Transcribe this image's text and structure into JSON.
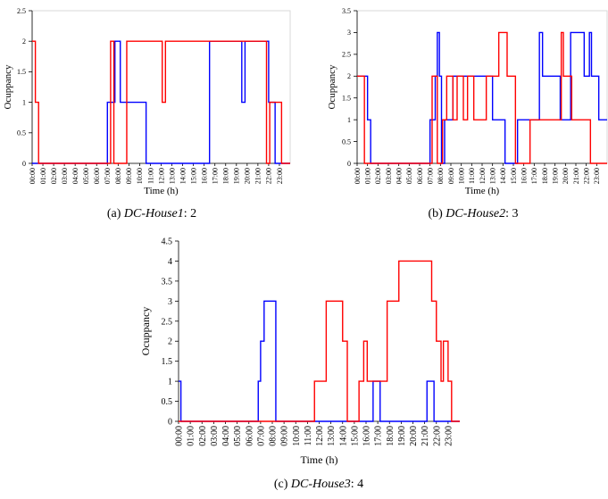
{
  "chart_data": [
    {
      "type": "line",
      "caption_label": "(a)",
      "caption_name": "DC-House1",
      "caption_value": ": 2",
      "xlabel": "Time (h)",
      "ylabel": "Ocuppancy",
      "xlim": [
        0,
        24
      ],
      "ylim": [
        0,
        2.5
      ],
      "yticks": [
        0,
        0.5,
        1,
        1.5,
        2,
        2.5
      ],
      "xticks": [
        {
          "value": 0,
          "label": "00:00"
        },
        {
          "value": 1,
          "label": "01:00"
        },
        {
          "value": 2,
          "label": "02:00"
        },
        {
          "value": 3,
          "label": "03:00"
        },
        {
          "value": 4,
          "label": "04:00"
        },
        {
          "value": 5,
          "label": "05:00"
        },
        {
          "value": 6,
          "label": "06:00"
        },
        {
          "value": 7,
          "label": "07:00"
        },
        {
          "value": 8,
          "label": "08:00"
        },
        {
          "value": 9,
          "label": "09:00"
        },
        {
          "value": 10,
          "label": "10:00"
        },
        {
          "value": 11,
          "label": "11:00"
        },
        {
          "value": 12,
          "label": "12:00"
        },
        {
          "value": 13,
          "label": "13:00"
        },
        {
          "value": 14,
          "label": "14:00"
        },
        {
          "value": 15,
          "label": "15:00"
        },
        {
          "value": 16,
          "label": "16:00"
        },
        {
          "value": 17,
          "label": "17:00"
        },
        {
          "value": 18,
          "label": "18:00"
        },
        {
          "value": 19,
          "label": "19:00"
        },
        {
          "value": 20,
          "label": "20:00"
        },
        {
          "value": 21,
          "label": "21:00"
        },
        {
          "value": 22,
          "label": "22:00"
        },
        {
          "value": 23,
          "label": "23:00"
        }
      ],
      "series": [
        {
          "color": "#0000ff",
          "x": [
            0,
            7,
            7,
            7.7,
            7.7,
            8.2,
            8.2,
            10.6,
            10.6,
            16.5,
            16.5,
            19.5,
            19.5,
            19.8,
            19.8,
            22,
            22,
            22.6,
            22.6,
            24
          ],
          "values": [
            0,
            0,
            1,
            1,
            2,
            2,
            1,
            1,
            0,
            0,
            2,
            2,
            1,
            1,
            2,
            2,
            1,
            1,
            0,
            0
          ]
        },
        {
          "color": "#ff0000",
          "x": [
            0,
            0.3,
            0.3,
            0.6,
            0.6,
            7.3,
            7.3,
            7.6,
            7.6,
            8.8,
            8.8,
            12.1,
            12.1,
            12.4,
            12.4,
            21.8,
            21.8,
            22.1,
            22.1,
            23.2,
            23.2,
            24
          ],
          "values": [
            2,
            2,
            1,
            1,
            0,
            0,
            2,
            2,
            0,
            0,
            2,
            2,
            1,
            1,
            2,
            2,
            0,
            0,
            1,
            1,
            0,
            0
          ]
        }
      ]
    },
    {
      "type": "line",
      "caption_label": "(b)",
      "caption_name": "DC-House2",
      "caption_value": ": 3",
      "xlabel": "Time (h)",
      "ylabel": "Ocuppancy",
      "xlim": [
        0,
        24
      ],
      "ylim": [
        0,
        3.5
      ],
      "yticks": [
        0,
        0.5,
        1,
        1.5,
        2,
        2.5,
        3,
        3.5
      ],
      "xticks": [
        {
          "value": 0,
          "label": "00:00"
        },
        {
          "value": 1,
          "label": "01:00"
        },
        {
          "value": 2,
          "label": "02:00"
        },
        {
          "value": 3,
          "label": "03:00"
        },
        {
          "value": 4,
          "label": "04:00"
        },
        {
          "value": 5,
          "label": "05:00"
        },
        {
          "value": 6,
          "label": "06:00"
        },
        {
          "value": 7,
          "label": "07:00"
        },
        {
          "value": 8,
          "label": "08:00"
        },
        {
          "value": 9,
          "label": "09:00"
        },
        {
          "value": 10,
          "label": "10:00"
        },
        {
          "value": 11,
          "label": "11:00"
        },
        {
          "value": 12,
          "label": "12:00"
        },
        {
          "value": 13,
          "label": "13:00"
        },
        {
          "value": 14,
          "label": "14:00"
        },
        {
          "value": 15,
          "label": "15:00"
        },
        {
          "value": 16,
          "label": "16:00"
        },
        {
          "value": 17,
          "label": "17:00"
        },
        {
          "value": 18,
          "label": "18:00"
        },
        {
          "value": 19,
          "label": "19:00"
        },
        {
          "value": 20,
          "label": "20:00"
        },
        {
          "value": 21,
          "label": "21:00"
        },
        {
          "value": 22,
          "label": "22:00"
        },
        {
          "value": 23,
          "label": "23:00"
        }
      ],
      "series": [
        {
          "color": "#0000ff",
          "x": [
            0,
            1,
            1,
            1.3,
            1.3,
            7,
            7,
            7.5,
            7.5,
            7.7,
            7.7,
            7.9,
            7.9,
            8.1,
            8.1,
            8.4,
            8.4,
            9.2,
            9.2,
            13,
            13,
            14.2,
            14.2,
            15.4,
            15.4,
            17.5,
            17.5,
            17.8,
            17.8,
            19.5,
            19.5,
            20.5,
            20.5,
            21.8,
            21.8,
            22.3,
            22.3,
            22.5,
            22.5,
            23.2,
            23.2,
            24
          ],
          "values": [
            2,
            2,
            1,
            1,
            0,
            0,
            1,
            1,
            2,
            2,
            3,
            3,
            2,
            2,
            0,
            0,
            1,
            1,
            2,
            2,
            1,
            1,
            0,
            0,
            1,
            1,
            3,
            3,
            2,
            2,
            1,
            1,
            3,
            3,
            2,
            2,
            3,
            3,
            2,
            2,
            1,
            1
          ]
        },
        {
          "color": "#ff0000",
          "x": [
            0,
            0.7,
            0.7,
            7.2,
            7.2,
            7.7,
            7.7,
            8.2,
            8.2,
            8.6,
            8.6,
            9.2,
            9.2,
            9.6,
            9.6,
            10.2,
            10.2,
            10.6,
            10.6,
            11.2,
            11.2,
            12.4,
            12.4,
            13.6,
            13.6,
            14.4,
            14.4,
            15.2,
            15.2,
            16.6,
            16.6,
            19.6,
            19.6,
            19.8,
            19.8,
            20.6,
            20.6,
            22.4,
            22.4,
            23.6,
            23.6,
            24
          ],
          "values": [
            2,
            2,
            0,
            0,
            2,
            2,
            0,
            0,
            1,
            1,
            2,
            2,
            1,
            1,
            2,
            2,
            1,
            1,
            2,
            2,
            1,
            1,
            2,
            2,
            3,
            3,
            2,
            2,
            0,
            0,
            1,
            1,
            3,
            3,
            2,
            2,
            1,
            1,
            0,
            0,
            0,
            0
          ]
        }
      ]
    },
    {
      "type": "line",
      "caption_label": "(c)",
      "caption_name": "DC-House3",
      "caption_value": ": 4",
      "xlabel": "Time (h)",
      "ylabel": "Ocuppancy",
      "xlim": [
        0,
        24
      ],
      "ylim": [
        0,
        4.5
      ],
      "yticks": [
        0,
        0.5,
        1,
        1.5,
        2,
        2.5,
        3,
        3.5,
        4,
        4.5
      ],
      "xticks": [
        {
          "value": 0,
          "label": "00:00"
        },
        {
          "value": 1,
          "label": "01:00"
        },
        {
          "value": 2,
          "label": "02:00"
        },
        {
          "value": 3,
          "label": "03:00"
        },
        {
          "value": 4,
          "label": "04:00"
        },
        {
          "value": 5,
          "label": "05:00"
        },
        {
          "value": 6,
          "label": "06:00"
        },
        {
          "value": 7,
          "label": "07:00"
        },
        {
          "value": 8,
          "label": "08:00"
        },
        {
          "value": 9,
          "label": "09:00"
        },
        {
          "value": 10,
          "label": "10:00"
        },
        {
          "value": 11,
          "label": "11:00"
        },
        {
          "value": 12,
          "label": "12:00"
        },
        {
          "value": 13,
          "label": "13:00"
        },
        {
          "value": 14,
          "label": "14:00"
        },
        {
          "value": 15,
          "label": "15:00"
        },
        {
          "value": 16,
          "label": "16:00"
        },
        {
          "value": 17,
          "label": "17:00"
        },
        {
          "value": 18,
          "label": "18:00"
        },
        {
          "value": 19,
          "label": "19:00"
        },
        {
          "value": 20,
          "label": "20:00"
        },
        {
          "value": 21,
          "label": "21:00"
        },
        {
          "value": 22,
          "label": "22:00"
        },
        {
          "value": 23,
          "label": "23:00"
        }
      ],
      "series": [
        {
          "color": "#0000ff",
          "x": [
            0,
            0.2,
            0.2,
            6.8,
            6.8,
            7,
            7,
            7.3,
            7.3,
            8.3,
            8.3,
            16.6,
            16.6,
            17.2,
            17.2,
            21.2,
            21.2,
            21.8,
            21.8,
            24
          ],
          "values": [
            1,
            1,
            0,
            0,
            1,
            1,
            2,
            2,
            3,
            3,
            0,
            0,
            1,
            1,
            0,
            0,
            1,
            1,
            0,
            0
          ]
        },
        {
          "color": "#ff0000",
          "x": [
            0,
            11.6,
            11.6,
            12.6,
            12.6,
            14,
            14,
            14.4,
            14.4,
            15.4,
            15.4,
            15.8,
            15.8,
            16.1,
            16.1,
            17.8,
            17.8,
            18.8,
            18.8,
            21.6,
            21.6,
            22,
            22,
            22.4,
            22.4,
            22.6,
            22.6,
            23,
            23,
            23.3,
            23.3,
            24
          ],
          "values": [
            0,
            0,
            1,
            1,
            3,
            3,
            2,
            2,
            0,
            0,
            1,
            1,
            2,
            2,
            1,
            1,
            3,
            3,
            4,
            4,
            3,
            3,
            2,
            2,
            1,
            1,
            2,
            2,
            1,
            1,
            0,
            0
          ]
        }
      ]
    }
  ]
}
